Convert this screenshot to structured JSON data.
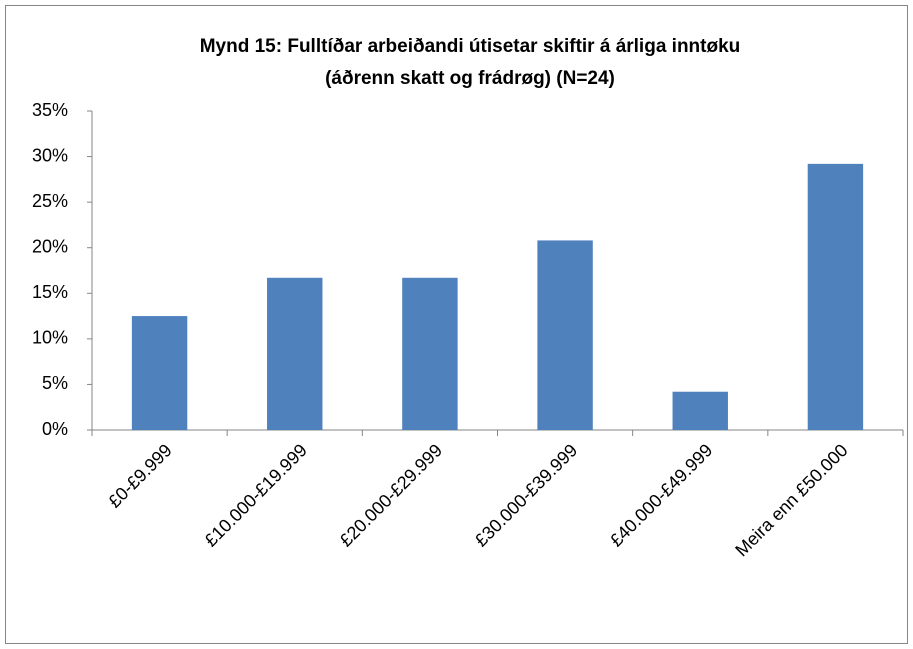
{
  "chart_data": {
    "type": "bar",
    "title": [
      "Mynd 15: Fulltíðar arbeiðandi útisetar skiftir á árliga inntøku",
      "(áðrenn skatt og frádrøg) (N=24)"
    ],
    "categories": [
      "£0-£9.999",
      "£10.000-£19.999",
      "£20.000-£29.999",
      "£30.000-£39.999",
      "£40.000-£49.999",
      "Meira enn £50.000"
    ],
    "values": [
      12.5,
      16.7,
      16.7,
      20.8,
      4.2,
      29.2
    ],
    "color": "#4f81bd",
    "ylim": [
      0,
      35
    ],
    "yticks": [
      {
        "value": 0,
        "label": "0%"
      },
      {
        "value": 5,
        "label": "5%"
      },
      {
        "value": 10,
        "label": "10%"
      },
      {
        "value": 15,
        "label": "15%"
      },
      {
        "value": 20,
        "label": "20%"
      },
      {
        "value": 25,
        "label": "25%"
      },
      {
        "value": 30,
        "label": "30%"
      },
      {
        "value": 35,
        "label": "35%"
      }
    ],
    "grid": false
  }
}
